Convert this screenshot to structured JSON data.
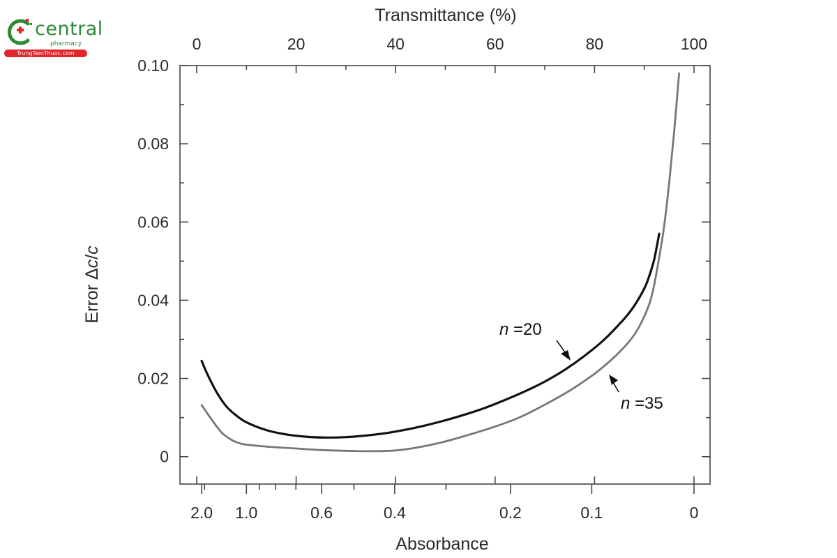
{
  "watermark": {
    "brand": "central",
    "sub": "pharmacy",
    "site": "TrungTamThuoc.com",
    "colors": {
      "green": "#2c8a35",
      "red": "#e0262b"
    }
  },
  "chart_data": {
    "type": "line",
    "title": "",
    "top_axis": {
      "label": "Transmittance (%)",
      "range": [
        0,
        100
      ],
      "ticks": [
        0,
        20,
        40,
        60,
        80,
        100
      ],
      "tick_labels": [
        "0",
        "20",
        "40",
        "60",
        "80",
        "100"
      ],
      "minor_ticks": [
        10,
        30,
        50,
        70,
        90
      ]
    },
    "bottom_axis": {
      "label": "Absorbance",
      "tick_values": [
        2.0,
        1.0,
        0.6,
        0.4,
        0.2,
        0.1,
        0
      ],
      "tick_labels": [
        "2.0",
        "1.0",
        "0.6",
        "0.4",
        "0.2",
        "0.1",
        "0"
      ],
      "minor_tick_values": [
        1.8,
        0.9,
        0.8,
        0.7,
        0.5,
        0.3
      ]
    },
    "y_axis": {
      "label_prefix": "Error ",
      "label_delta": "Δ",
      "label_c1": "c",
      "label_slash": "/",
      "label_c2": "c",
      "range": [
        -0.007,
        0.1
      ],
      "ticks": [
        0,
        0.02,
        0.04,
        0.06,
        0.08,
        0.1
      ],
      "tick_labels": [
        "0",
        "0.02",
        "0.04",
        "0.06",
        "0.08",
        "0.10"
      ]
    },
    "series": [
      {
        "name": "n = 20",
        "label_n": "n",
        "label_eq": " =20",
        "color": "#111111",
        "x_transmittance": [
          1,
          2,
          4,
          6,
          8,
          10,
          14,
          18,
          22,
          26,
          30,
          34,
          38,
          42,
          46,
          50,
          54,
          58,
          62,
          66,
          70,
          74,
          78,
          82,
          86,
          88,
          90,
          91,
          92,
          93
        ],
        "y": [
          0.0245,
          0.0215,
          0.0165,
          0.0128,
          0.0105,
          0.0088,
          0.0068,
          0.0057,
          0.0051,
          0.0049,
          0.005,
          0.0054,
          0.006,
          0.0069,
          0.008,
          0.0093,
          0.0108,
          0.0125,
          0.0145,
          0.0167,
          0.0192,
          0.0222,
          0.0258,
          0.03,
          0.0353,
          0.0386,
          0.043,
          0.0462,
          0.0505,
          0.057
        ]
      },
      {
        "name": "n = 35",
        "label_n": "n",
        "label_eq": " =35",
        "color": "#777777",
        "x_transmittance": [
          1,
          3,
          5,
          7,
          9,
          12,
          16,
          20,
          25,
          30,
          35,
          40,
          45,
          50,
          55,
          60,
          65,
          70,
          75,
          80,
          84,
          87,
          89,
          91,
          92,
          93,
          94,
          95,
          96,
          97
        ],
        "y": [
          0.0132,
          0.0095,
          0.0062,
          0.0043,
          0.0033,
          0.0028,
          0.0024,
          0.0021,
          0.0017,
          0.0015,
          0.0014,
          0.0016,
          0.0025,
          0.0039,
          0.0057,
          0.0077,
          0.0101,
          0.0133,
          0.0169,
          0.0212,
          0.0255,
          0.0295,
          0.0333,
          0.039,
          0.044,
          0.051,
          0.059,
          0.07,
          0.083,
          0.098
        ]
      }
    ],
    "annotations": [
      {
        "text": "n =20",
        "points_to": "n = 20"
      },
      {
        "text": "n =35",
        "points_to": "n = 35"
      }
    ],
    "grid": false
  }
}
